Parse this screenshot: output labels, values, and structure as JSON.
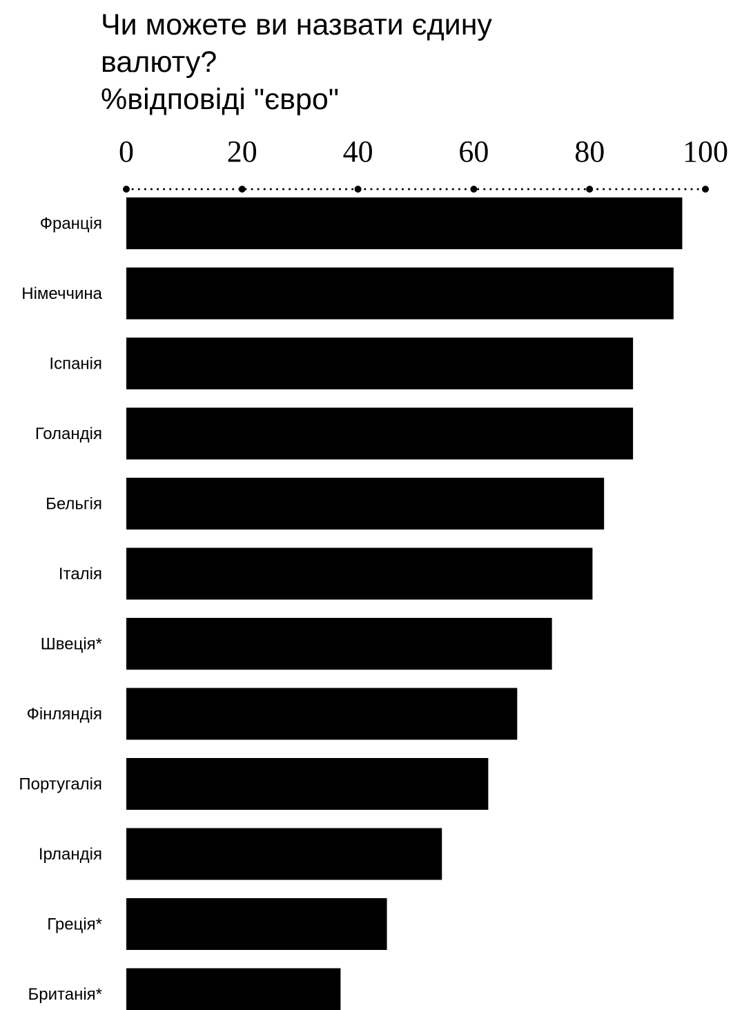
{
  "chart_data": {
    "type": "bar",
    "orientation": "horizontal",
    "title": [
      "Чи можете ви назвати єдину",
      "валюту?",
      "%відповіді \"євро\""
    ],
    "categories": [
      "Франція",
      "Німеччина",
      "Іспанія",
      "Голандія",
      "Бельгія",
      "Італія",
      "Швеція*",
      "Фінляндія",
      "Португалія",
      "Ірландія",
      "Греція*",
      "Британія*"
    ],
    "values": [
      96,
      94.5,
      87.5,
      87.5,
      82.5,
      80.5,
      73.5,
      67.5,
      62.5,
      54.5,
      45,
      37
    ],
    "xlim": [
      0,
      100
    ],
    "xticks": [
      "0",
      "20",
      "40",
      "60",
      "80",
      "100"
    ],
    "xtick_values": [
      0,
      20,
      40,
      60,
      80,
      100
    ],
    "axis_position": "top",
    "axis_style": "dotted",
    "grid": false,
    "bar_color": "#000000"
  }
}
